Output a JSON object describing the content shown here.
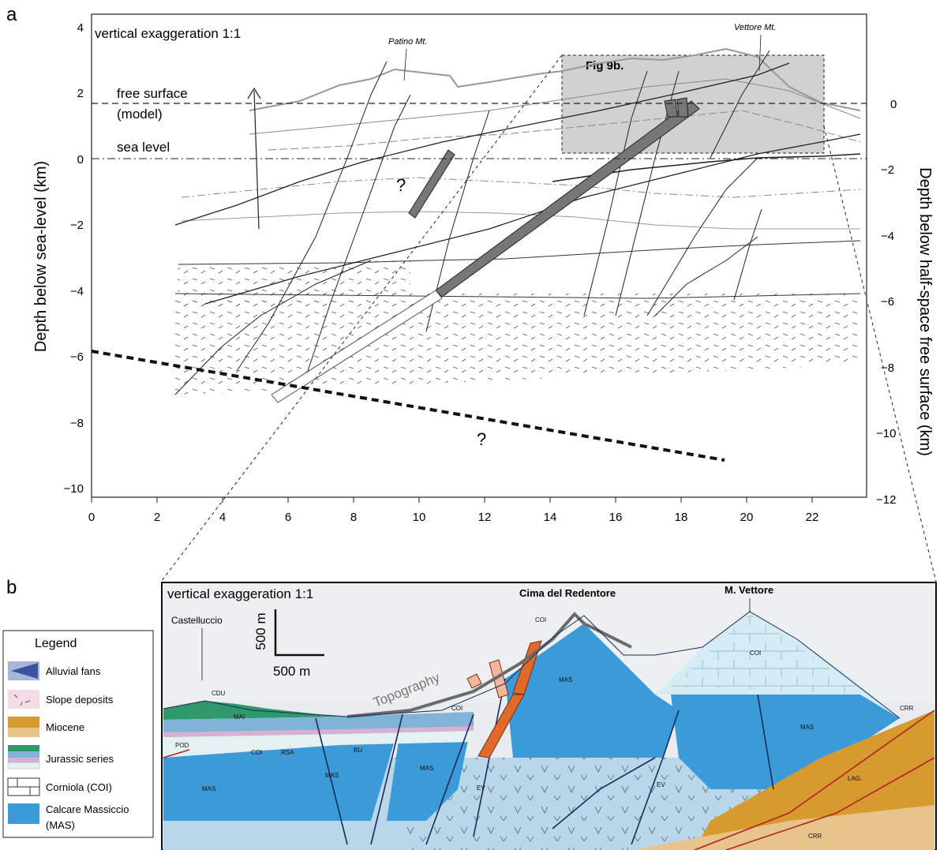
{
  "panel_a": {
    "label": "a",
    "note": "vertical exaggeration 1:1",
    "left_axis_title": "Depth below sea-level (km)",
    "right_axis_title": "Depth below half-space free surface (km)",
    "x_ticks": [
      "0",
      "2",
      "4",
      "6",
      "8",
      "10",
      "12",
      "14",
      "16",
      "18",
      "20",
      "22"
    ],
    "y_ticks_left": [
      "4",
      "2",
      "0",
      "−2",
      "−4",
      "−6",
      "−8",
      "−10"
    ],
    "y_ticks_right": [
      "0",
      "−2",
      "−4",
      "−6",
      "−8",
      "−10",
      "−12"
    ],
    "free_surface_label": "free surface",
    "free_surface_sub": "(model)",
    "sea_level_label": "sea level",
    "box_label": "Fig 9b.",
    "mountain_1": "Patino Mt.",
    "mountain_2": "Vettore Mt.",
    "question_1": "?",
    "question_2": "?"
  },
  "panel_b": {
    "label": "b",
    "note": "vertical exaggeration 1:1",
    "scale_v": "500 m",
    "scale_h": "500 m",
    "peak_1": "Cima del Redentore",
    "peak_2": "M. Vettore",
    "town": "Castelluccio",
    "topography": "Topography",
    "units": {
      "cdu": "CDU",
      "mai": "MAI",
      "pod": "POD",
      "coi_1": "COI",
      "rsa": "RSA",
      "bu": "BU",
      "mas_1": "MAS",
      "mas_2": "MAS",
      "mas_3": "MAS",
      "mas_4": "MAS",
      "mas_5": "MAS",
      "ev_1": "EV",
      "ev_2": "EV",
      "coi_2": "COI",
      "coi_3": "COI",
      "coi_4": "COI",
      "crr_1": "CRR",
      "crr_2": "CRR",
      "lag": "LAG."
    }
  },
  "legend": {
    "title": "Legend",
    "items": [
      {
        "label": "Alluvial fans"
      },
      {
        "label": "Slope deposits"
      },
      {
        "label": "Miocene"
      },
      {
        "label": "Jurassic series"
      },
      {
        "label": "Corniola (COI)"
      },
      {
        "label": "Calcare Massiccio"
      },
      {
        "label": "(MAS)"
      }
    ]
  }
}
